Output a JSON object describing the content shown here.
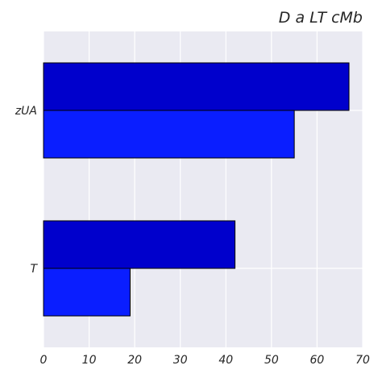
{
  "chart_data": {
    "type": "bar",
    "orientation": "horizontal",
    "title": "D a LT  cMb",
    "xlabel": "",
    "ylabel": "",
    "categories": [
      "T",
      "zUA"
    ],
    "series": [
      {
        "values": [
          42,
          67
        ],
        "color": "#0000cc"
      },
      {
        "values": [
          19,
          55
        ],
        "color": "#0a1eff"
      }
    ],
    "xlim": [
      0,
      70
    ],
    "xticks": [
      0,
      10,
      20,
      30,
      40,
      50,
      60,
      70
    ],
    "grid": true,
    "background": "#eaeaf2",
    "legend": "none"
  }
}
